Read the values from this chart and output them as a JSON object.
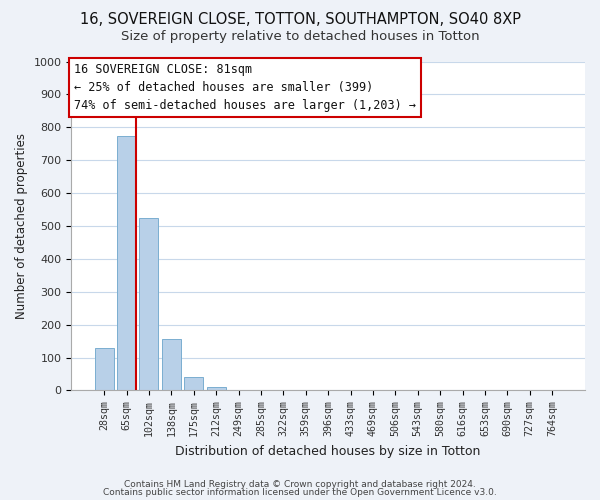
{
  "title": "16, SOVEREIGN CLOSE, TOTTON, SOUTHAMPTON, SO40 8XP",
  "subtitle": "Size of property relative to detached houses in Totton",
  "xlabel": "Distribution of detached houses by size in Totton",
  "ylabel": "Number of detached properties",
  "bar_labels": [
    "28sqm",
    "65sqm",
    "102sqm",
    "138sqm",
    "175sqm",
    "212sqm",
    "249sqm",
    "285sqm",
    "322sqm",
    "359sqm",
    "396sqm",
    "433sqm",
    "469sqm",
    "506sqm",
    "543sqm",
    "580sqm",
    "616sqm",
    "653sqm",
    "690sqm",
    "727sqm",
    "764sqm"
  ],
  "bar_values": [
    130,
    775,
    525,
    155,
    40,
    10,
    0,
    0,
    0,
    0,
    0,
    0,
    0,
    0,
    0,
    0,
    0,
    0,
    0,
    0,
    0
  ],
  "bar_color": "#b8d0e8",
  "bar_edge_color": "#7aaed0",
  "vline_x_pos": 1.425,
  "vline_color": "#cc0000",
  "ylim": [
    0,
    1000
  ],
  "yticks": [
    0,
    100,
    200,
    300,
    400,
    500,
    600,
    700,
    800,
    900,
    1000
  ],
  "annotation_box_text_line1": "16 SOVEREIGN CLOSE: 81sqm",
  "annotation_box_text_line2": "← 25% of detached houses are smaller (399)",
  "annotation_box_text_line3": "74% of semi-detached houses are larger (1,203) →",
  "annotation_box_color": "#ffffff",
  "annotation_box_edge_color": "#cc0000",
  "footer_line1": "Contains HM Land Registry data © Crown copyright and database right 2024.",
  "footer_line2": "Contains public sector information licensed under the Open Government Licence v3.0.",
  "background_color": "#eef2f8",
  "plot_background_color": "#ffffff",
  "grid_color": "#c8d8ea",
  "title_fontsize": 10.5,
  "subtitle_fontsize": 9.5
}
